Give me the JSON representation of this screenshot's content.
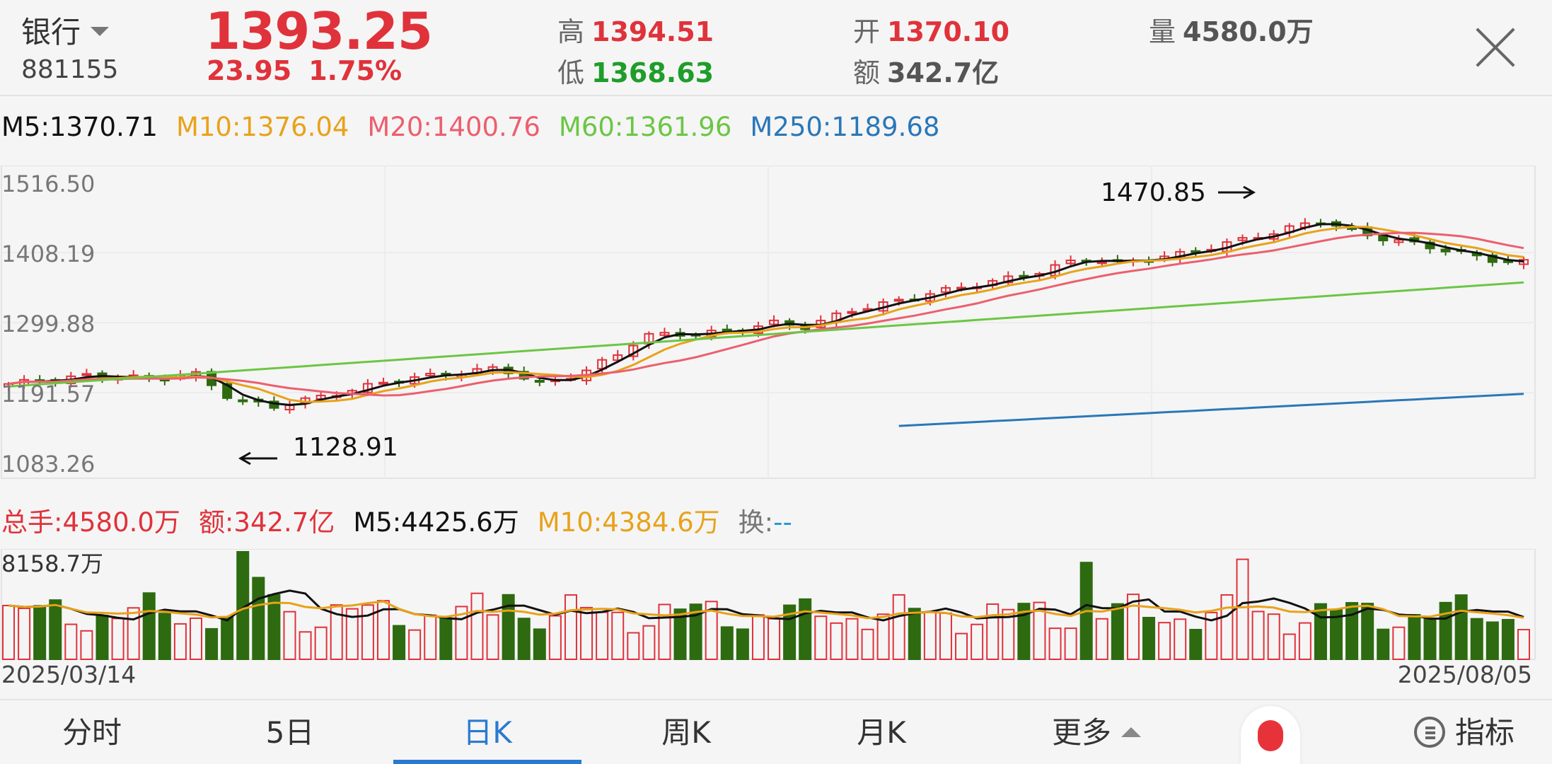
{
  "header": {
    "name": "银行",
    "code": "881155",
    "price": "1393.25",
    "change": "23.95",
    "change_pct": "1.75%",
    "high_label": "高",
    "high": "1394.51",
    "low_label": "低",
    "low": "1368.63",
    "open_label": "开",
    "open": "1370.10",
    "amount_label": "额",
    "amount": "342.7亿",
    "volume_label": "量",
    "volume": "4580.0万"
  },
  "ma_legend": [
    {
      "text": "M5:1370.71",
      "color": "#111111"
    },
    {
      "text": "M10:1376.04",
      "color": "#e8a21a"
    },
    {
      "text": "M20:1400.76",
      "color": "#ec5f6e"
    },
    {
      "text": "M60:1361.96",
      "color": "#6cc644"
    },
    {
      "text": "M250:1189.68",
      "color": "#2a77b8"
    }
  ],
  "vol_legend": [
    {
      "text": "总手:4580.0万",
      "color": "#e0323b"
    },
    {
      "text": "额:342.7亿",
      "color": "#e0323b"
    },
    {
      "text": "M5:4425.6万",
      "color": "#111111"
    },
    {
      "text": "M10:4384.6万",
      "color": "#e8a21a"
    },
    {
      "text": "换:",
      "color": "#777777"
    },
    {
      "text": "--",
      "color": "#2a9ad0"
    }
  ],
  "chart_data": {
    "type": "candlestick",
    "y_ticks": [
      "1516.50",
      "1408.19",
      "1299.88",
      "1191.57",
      "1083.26"
    ],
    "ylim": [
      1083.26,
      1516.5
    ],
    "max_annotation": "1470.85",
    "min_annotation": "1128.91",
    "vol_max_label": "8158.7万",
    "x_start": "2025/03/14",
    "x_end": "2025/08/05"
  },
  "tabs": [
    {
      "label": "分时"
    },
    {
      "label": "5日"
    },
    {
      "label": "日K"
    },
    {
      "label": "周K"
    },
    {
      "label": "月K"
    },
    {
      "label": "更多"
    }
  ],
  "indicator_label": "指标",
  "colors": {
    "up": "#e0323b",
    "down": "#2d6a10",
    "accent": "#2a7ad0"
  }
}
